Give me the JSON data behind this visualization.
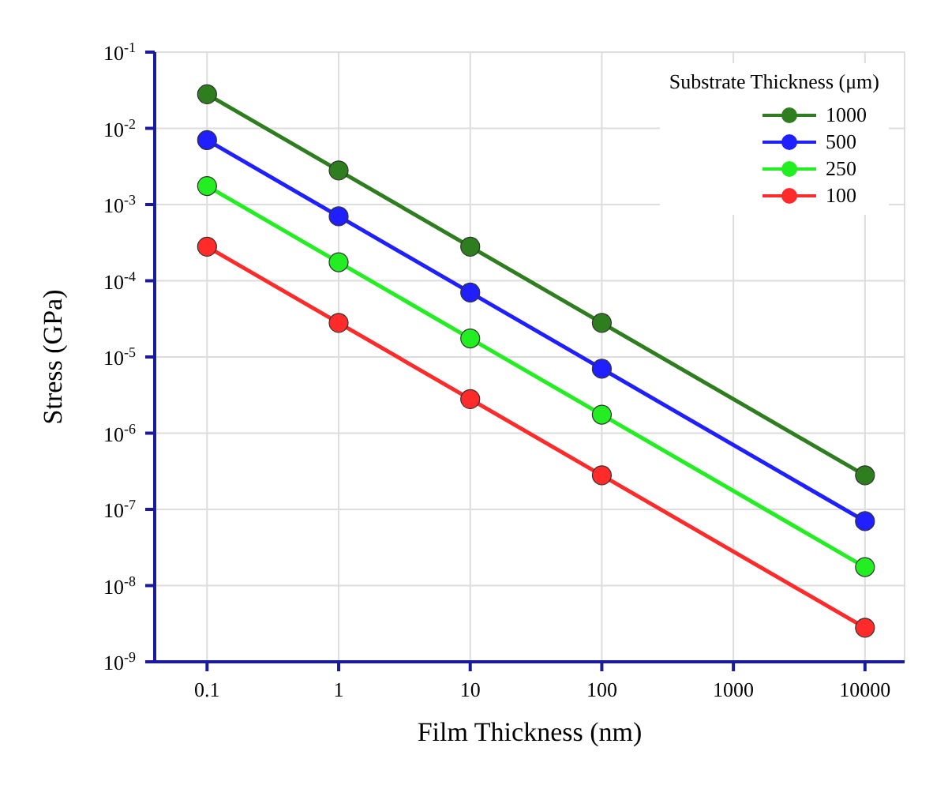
{
  "chart_data": {
    "type": "line",
    "xlabel": "Film Thickness (nm)",
    "ylabel": "Stress (GPa)",
    "legend_title": "Substrate Thickness (μm)",
    "x": [
      0.1,
      1,
      10,
      100,
      10000
    ],
    "series": [
      {
        "name": "1000",
        "color": "#2e7d1e",
        "values": [
          0.028,
          0.0028,
          0.00028,
          2.8e-05,
          2.8e-07
        ]
      },
      {
        "name": "500",
        "color": "#1f1fff",
        "values": [
          0.007,
          0.0007,
          7e-05,
          7e-06,
          7e-08
        ]
      },
      {
        "name": "250",
        "color": "#22ee22",
        "values": [
          0.00175,
          0.000175,
          1.75e-05,
          1.75e-06,
          1.75e-08
        ]
      },
      {
        "name": "100",
        "color": "#ff2a2a",
        "values": [
          0.00028,
          2.8e-05,
          2.8e-06,
          2.8e-07,
          2.8e-09
        ]
      }
    ],
    "log": "xy",
    "grid": true,
    "legend": "top right",
    "marker": "circle",
    "line_style": "solid",
    "xlim": [
      0.04,
      20000
    ],
    "xticks": [
      0.1,
      1,
      10,
      100,
      1000,
      10000
    ],
    "ylim": [
      1e-09,
      0.1
    ],
    "yticks": [
      {
        "value": 1e-09,
        "label": "10$^{-9}$"
      },
      {
        "value": 1e-08,
        "label": "10$^{-8}$"
      },
      {
        "value": 1e-07,
        "label": "10$^{-7}$"
      },
      {
        "value": 1e-06,
        "label": "10$^{-6}$"
      },
      {
        "value": 1e-05,
        "label": "10$^{-5}$"
      },
      {
        "value": 0.0001,
        "label": "10$^{-4}$"
      },
      {
        "value": 0.001,
        "label": "10$^{-3}$"
      },
      {
        "value": 0.01,
        "label": "10$^{-2}$"
      },
      {
        "value": 0.1,
        "label": "10$^{-1}$"
      }
    ]
  }
}
